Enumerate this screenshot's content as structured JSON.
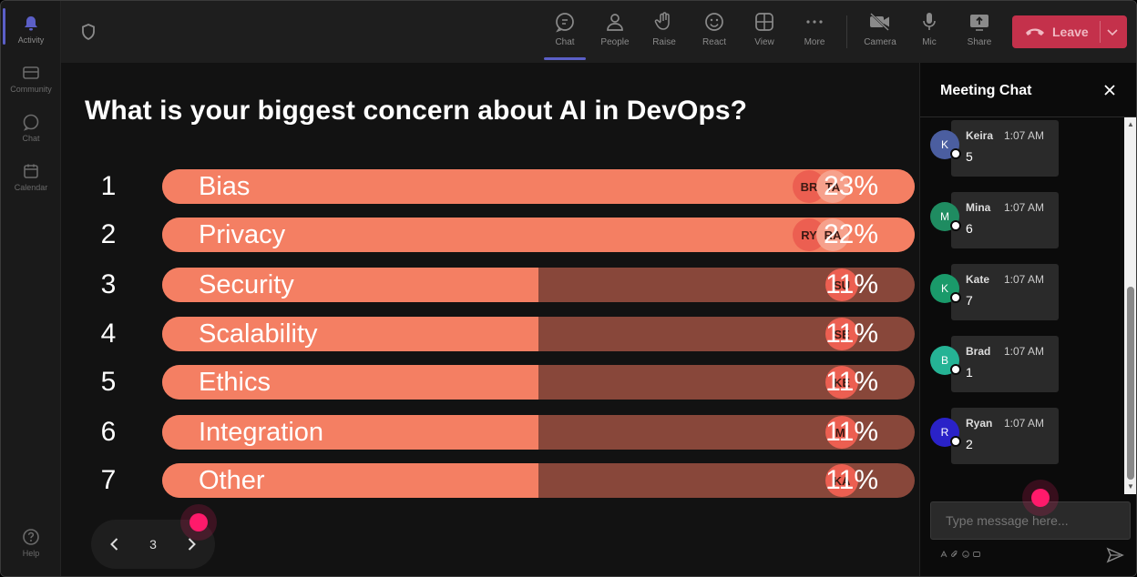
{
  "rail": {
    "items": [
      {
        "label": "Activity",
        "icon": "bell-icon",
        "active": true
      },
      {
        "label": "Community",
        "icon": "community-icon",
        "active": false
      },
      {
        "label": "Chat",
        "icon": "chat-icon",
        "active": false
      },
      {
        "label": "Calendar",
        "icon": "calendar-icon",
        "active": false
      }
    ],
    "help": {
      "label": "Help",
      "icon": "help-icon"
    }
  },
  "toolbar": {
    "buttons": [
      {
        "label": "Chat",
        "icon": "chat-icon",
        "active": true
      },
      {
        "label": "People",
        "icon": "people-icon"
      },
      {
        "label": "Raise",
        "icon": "raise-hand-icon"
      },
      {
        "label": "React",
        "icon": "react-icon"
      },
      {
        "label": "View",
        "icon": "view-grid-icon"
      },
      {
        "label": "More",
        "icon": "more-icon"
      },
      {
        "label": "Camera",
        "icon": "camera-off-icon"
      },
      {
        "label": "Mic",
        "icon": "mic-icon"
      },
      {
        "label": "Share",
        "icon": "share-icon"
      }
    ],
    "leave_label": "Leave"
  },
  "poll": {
    "question": "What is your biggest concern about AI in DevOps?",
    "options": [
      {
        "num": "1",
        "label": "Bias",
        "percent": "23%",
        "value": 23,
        "avatars": [
          "BR",
          "TA"
        ]
      },
      {
        "num": "2",
        "label": "Privacy",
        "percent": "22%",
        "value": 22,
        "avatars": [
          "RY",
          "RA"
        ]
      },
      {
        "num": "3",
        "label": "Security",
        "percent": "11%",
        "value": 11,
        "avatars": [
          "SU"
        ]
      },
      {
        "num": "4",
        "label": "Scalability",
        "percent": "11%",
        "value": 11,
        "avatars": [
          "SE"
        ]
      },
      {
        "num": "5",
        "label": "Ethics",
        "percent": "11%",
        "value": 11,
        "avatars": [
          "KE"
        ]
      },
      {
        "num": "6",
        "label": "Integration",
        "percent": "11%",
        "value": 11,
        "avatars": [
          "MI"
        ]
      },
      {
        "num": "7",
        "label": "Other",
        "percent": "11%",
        "value": 11,
        "avatars": [
          "KA"
        ]
      }
    ],
    "page": "3"
  },
  "chat": {
    "title": "Meeting Chat",
    "messages": [
      {
        "initial": "K",
        "name": "Keira",
        "time": "1:07 AM",
        "text": "5",
        "color": "#4b5ea0"
      },
      {
        "initial": "M",
        "name": "Mina",
        "time": "1:07 AM",
        "text": "6",
        "color": "#1f8c61"
      },
      {
        "initial": "K",
        "name": "Kate",
        "time": "1:07 AM",
        "text": "7",
        "color": "#1a9a6a"
      },
      {
        "initial": "B",
        "name": "Brad",
        "time": "1:07 AM",
        "text": "1",
        "color": "#25b395"
      },
      {
        "initial": "R",
        "name": "Ryan",
        "time": "1:07 AM",
        "text": "2",
        "color": "#2a22c8"
      }
    ],
    "input_placeholder": "Type message here..."
  },
  "colors": {
    "accent": "#5b5fc7",
    "bar_fill": "#f47f63",
    "bar_track": "#88473a",
    "leave": "#c4314b"
  }
}
